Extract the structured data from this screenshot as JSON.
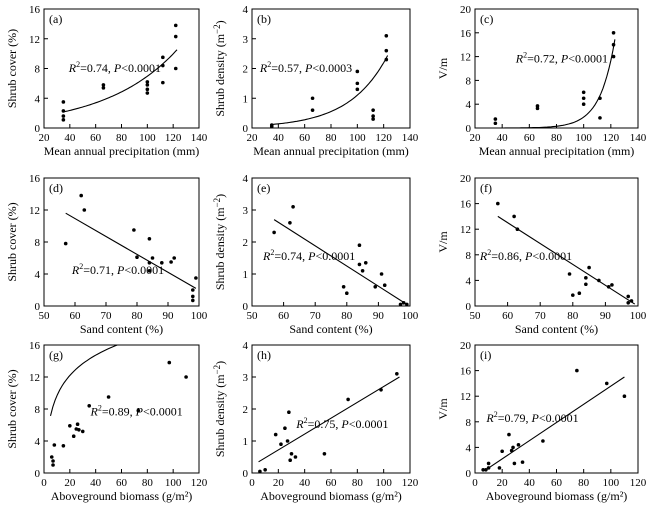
{
  "colors": {
    "axis": "#000000",
    "point": "#000000",
    "line": "#000000",
    "background": "#ffffff"
  },
  "chart_data": [
    {
      "panel": "(a)",
      "type": "scatter",
      "xlabel": "Mean annual precipitation (mm)",
      "ylabel": "Shrub cover (%)",
      "xlim": [
        20,
        140
      ],
      "ylim": [
        0,
        16
      ],
      "xticks": [
        20,
        40,
        60,
        80,
        100,
        120,
        140
      ],
      "yticks": [
        0,
        4,
        8,
        12,
        16
      ],
      "points": [
        [
          35,
          1.1
        ],
        [
          35,
          1.6
        ],
        [
          35,
          2.3
        ],
        [
          35,
          3.5
        ],
        [
          66,
          5.4
        ],
        [
          66,
          5.8
        ],
        [
          100,
          4.7
        ],
        [
          100,
          5.2
        ],
        [
          100,
          5.8
        ],
        [
          100,
          6.2
        ],
        [
          112,
          6.1
        ],
        [
          112,
          8.4
        ],
        [
          112,
          9.5
        ],
        [
          122,
          8.0
        ],
        [
          122,
          12.3
        ],
        [
          122,
          13.8
        ]
      ],
      "fit": {
        "kind": "exp",
        "a": 1.15,
        "b": 0.018
      },
      "annotation": {
        "r2": "=0.74, ",
        "p": "<0.0001"
      }
    },
    {
      "panel": "(b)",
      "type": "scatter",
      "xlabel": "Mean annual precipitation (mm)",
      "ylabel": "Shrub density (m",
      "ylabel_sup": "−2",
      "ylabel_close": ")",
      "xlim": [
        20,
        140
      ],
      "ylim": [
        0,
        4
      ],
      "xticks": [
        20,
        40,
        60,
        80,
        100,
        120,
        140
      ],
      "yticks": [
        0,
        1,
        2,
        3,
        4
      ],
      "points": [
        [
          35,
          0.05
        ],
        [
          35,
          0.1
        ],
        [
          66,
          0.6
        ],
        [
          66,
          1.0
        ],
        [
          100,
          1.3
        ],
        [
          100,
          1.5
        ],
        [
          100,
          1.9
        ],
        [
          112,
          0.3
        ],
        [
          112,
          0.4
        ],
        [
          112,
          0.6
        ],
        [
          122,
          2.3
        ],
        [
          122,
          2.6
        ],
        [
          122,
          3.1
        ]
      ],
      "fit": {
        "kind": "exp",
        "a": 0.035,
        "b": 0.0345
      },
      "annotation": {
        "r2": "=0.57, ",
        "p": "<0.0003"
      }
    },
    {
      "panel": "(c)",
      "type": "scatter",
      "xlabel": "Mean annual precipitation (mm)",
      "ylabel": "V/m",
      "xlim": [
        20,
        140
      ],
      "ylim": [
        0,
        20
      ],
      "xticks": [
        20,
        40,
        60,
        80,
        100,
        120,
        140
      ],
      "yticks": [
        0,
        4,
        8,
        12,
        16,
        20
      ],
      "points": [
        [
          35,
          0.8
        ],
        [
          35,
          1.5
        ],
        [
          66,
          3.3
        ],
        [
          66,
          3.7
        ],
        [
          100,
          4.0
        ],
        [
          100,
          5.0
        ],
        [
          100,
          6.0
        ],
        [
          112,
          1.7
        ],
        [
          112,
          5.0
        ],
        [
          122,
          12.0
        ],
        [
          122,
          14.0
        ],
        [
          122,
          16.0
        ]
      ],
      "fit": {
        "kind": "exp",
        "a": 0.0002,
        "b": 0.0912
      },
      "annotation": {
        "r2": "=0.72, ",
        "p": "<0.0001"
      }
    },
    {
      "panel": "(d)",
      "type": "scatter",
      "xlabel": "Sand content (%)",
      "ylabel": "Shrub cover (%)",
      "xlim": [
        50,
        100
      ],
      "ylim": [
        0,
        16
      ],
      "xticks": [
        50,
        60,
        70,
        80,
        90,
        100
      ],
      "yticks": [
        0,
        4,
        8,
        12,
        16
      ],
      "points": [
        [
          57,
          7.8
        ],
        [
          62,
          13.8
        ],
        [
          63,
          12.0
        ],
        [
          79,
          9.5
        ],
        [
          80,
          6.1
        ],
        [
          84,
          4.4
        ],
        [
          84,
          5.4
        ],
        [
          84,
          8.4
        ],
        [
          85,
          6.0
        ],
        [
          88,
          5.4
        ],
        [
          91,
          5.5
        ],
        [
          92,
          6.0
        ],
        [
          98,
          0.7
        ],
        [
          98,
          1.2
        ],
        [
          98,
          2.0
        ],
        [
          99,
          3.5
        ]
      ],
      "fit": {
        "kind": "linear",
        "x": [
          57,
          99
        ],
        "y": [
          11.6,
          2.2
        ]
      },
      "annotation": {
        "r2": "=0.71, ",
        "p": "<0.0001"
      }
    },
    {
      "panel": "(e)",
      "type": "scatter",
      "xlabel": "Sand content (%)",
      "ylabel": "Shrub density (m",
      "ylabel_sup": "−2",
      "ylabel_close": ")",
      "xlim": [
        50,
        100
      ],
      "ylim": [
        0,
        4
      ],
      "xticks": [
        50,
        60,
        70,
        80,
        90,
        100
      ],
      "yticks": [
        0,
        1,
        2,
        3,
        4
      ],
      "points": [
        [
          57,
          2.3
        ],
        [
          62,
          2.6
        ],
        [
          63,
          3.1
        ],
        [
          79,
          0.6
        ],
        [
          80,
          0.4
        ],
        [
          84,
          1.3
        ],
        [
          84,
          1.9
        ],
        [
          85,
          1.1
        ],
        [
          86,
          1.35
        ],
        [
          89,
          0.6
        ],
        [
          91,
          1.0
        ],
        [
          92,
          0.65
        ],
        [
          97,
          0.05
        ],
        [
          98,
          0.1
        ],
        [
          99,
          0.05
        ]
      ],
      "fit": {
        "kind": "linear",
        "x": [
          57,
          99
        ],
        "y": [
          2.7,
          0.05
        ]
      },
      "annotation": {
        "r2": "=0.74, ",
        "p": "<0.0001"
      }
    },
    {
      "panel": "(f)",
      "type": "scatter",
      "xlabel": "Sand content (%)",
      "ylabel": "V/m",
      "xlim": [
        50,
        100
      ],
      "ylim": [
        0,
        20
      ],
      "xticks": [
        50,
        60,
        70,
        80,
        90,
        100
      ],
      "yticks": [
        0,
        4,
        8,
        12,
        16,
        20
      ],
      "points": [
        [
          57,
          16.0
        ],
        [
          62,
          14.0
        ],
        [
          63,
          12.0
        ],
        [
          79,
          5.0
        ],
        [
          80,
          1.7
        ],
        [
          82,
          2.0
        ],
        [
          84,
          4.4
        ],
        [
          84,
          3.4
        ],
        [
          85,
          6.0
        ],
        [
          88,
          4.0
        ],
        [
          91,
          3.0
        ],
        [
          92,
          3.3
        ],
        [
          97,
          0.5
        ],
        [
          97,
          1.5
        ],
        [
          98,
          0.8
        ]
      ],
      "fit": {
        "kind": "linear",
        "x": [
          57,
          99
        ],
        "y": [
          14.0,
          0.3
        ]
      },
      "annotation": {
        "r2": "=0.86, ",
        "p": "<0.0001"
      }
    },
    {
      "panel": "(g)",
      "type": "scatter",
      "xlabel": "Aboveground biomass (g/m²)",
      "ylabel": "Shrub cover (%)",
      "xlim": [
        0,
        120
      ],
      "ylim": [
        0,
        16
      ],
      "xticks": [
        0,
        20,
        40,
        60,
        80,
        100,
        120
      ],
      "yticks": [
        0,
        4,
        8,
        12,
        16
      ],
      "points": [
        [
          6,
          2.0
        ],
        [
          7,
          1.5
        ],
        [
          7,
          1.0
        ],
        [
          8,
          3.5
        ],
        [
          15,
          3.4
        ],
        [
          20,
          5.9
        ],
        [
          23,
          4.6
        ],
        [
          25,
          5.5
        ],
        [
          26,
          6.1
        ],
        [
          27,
          5.4
        ],
        [
          30,
          5.2
        ],
        [
          35,
          8.4
        ],
        [
          50,
          9.5
        ],
        [
          73,
          7.8
        ],
        [
          97,
          13.8
        ],
        [
          110,
          12.0
        ]
      ],
      "fit": {
        "kind": "log",
        "x0": 5,
        "a": 1.26,
        "b": 3.65
      },
      "annotation": {
        "r2": "=0.89, ",
        "p": "<0.0001"
      }
    },
    {
      "panel": "(h)",
      "type": "scatter",
      "xlabel": "Aboveground biomass (g/m²)",
      "ylabel": "Shrub density (m",
      "ylabel_sup": "−2",
      "ylabel_close": ")",
      "xlim": [
        0,
        120
      ],
      "ylim": [
        0,
        4
      ],
      "xticks": [
        0,
        20,
        40,
        60,
        80,
        100,
        120
      ],
      "yticks": [
        0,
        1,
        2,
        3,
        4
      ],
      "points": [
        [
          6,
          0.05
        ],
        [
          10,
          0.1
        ],
        [
          18,
          1.2
        ],
        [
          22,
          0.9
        ],
        [
          25,
          1.4
        ],
        [
          27,
          1.0
        ],
        [
          28,
          1.9
        ],
        [
          29,
          0.4
        ],
        [
          30,
          0.6
        ],
        [
          33,
          0.5
        ],
        [
          55,
          0.6
        ],
        [
          73,
          2.3
        ],
        [
          98,
          2.6
        ],
        [
          110,
          3.1
        ]
      ],
      "fit": {
        "kind": "linear",
        "x": [
          5,
          112
        ],
        "y": [
          0.35,
          3.0
        ]
      },
      "annotation": {
        "r2": "=0.75, ",
        "p": "<0.0001"
      }
    },
    {
      "panel": "(i)",
      "type": "scatter",
      "xlabel": "Aboveground biomass (g/m²)",
      "ylabel": "V/m",
      "xlim": [
        0,
        120
      ],
      "ylim": [
        0,
        20
      ],
      "xticks": [
        0,
        20,
        40,
        60,
        80,
        100,
        120
      ],
      "yticks": [
        0,
        4,
        8,
        12,
        16,
        20
      ],
      "points": [
        [
          6,
          0.5
        ],
        [
          8,
          0.5
        ],
        [
          10,
          0.8
        ],
        [
          10,
          1.5
        ],
        [
          18,
          0.8
        ],
        [
          20,
          3.4
        ],
        [
          25,
          6.0
        ],
        [
          27,
          3.5
        ],
        [
          28,
          4.0
        ],
        [
          29,
          1.5
        ],
        [
          32,
          4.4
        ],
        [
          35,
          1.7
        ],
        [
          50,
          5.0
        ],
        [
          75,
          16.0
        ],
        [
          97,
          14.0
        ],
        [
          110,
          12.0
        ]
      ],
      "fit": {
        "kind": "linear",
        "x": [
          8,
          110
        ],
        "y": [
          0.5,
          15.0
        ]
      },
      "annotation": {
        "r2": "=0.79, ",
        "p": "<0.0001"
      }
    }
  ]
}
